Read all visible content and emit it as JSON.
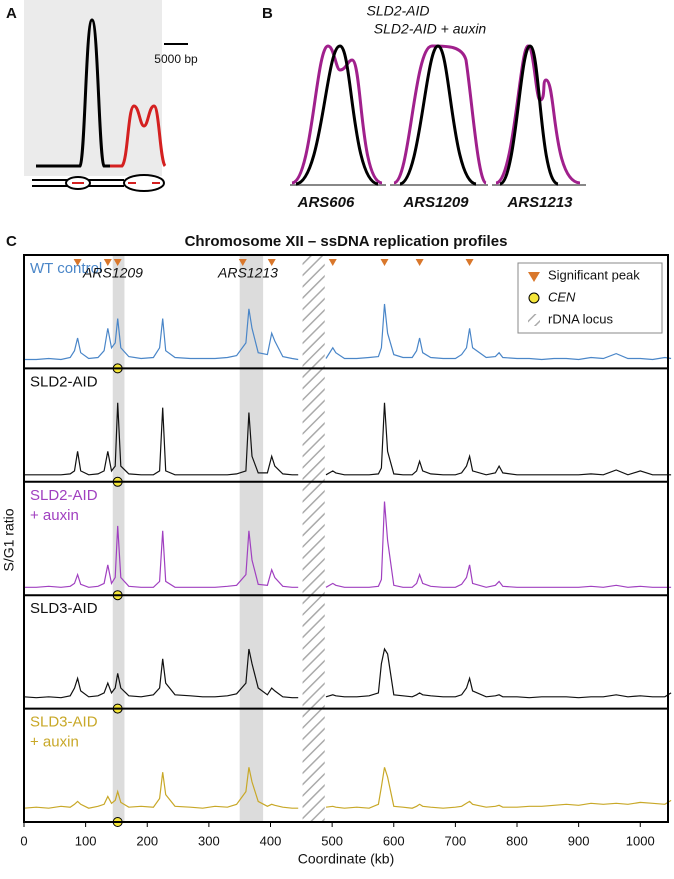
{
  "panel_a": {
    "label": "A",
    "scale_bar": "5000 bp"
  },
  "panel_b": {
    "label": "B",
    "legend": [
      "SLD2-AID",
      "SLD2-AID + auxin"
    ],
    "origins": [
      "ARS606",
      "ARS1209",
      "ARS1213"
    ]
  },
  "chart_data": {
    "type": "line",
    "panel_label": "C",
    "title": "Chromosome XII – ssDNA replication profiles",
    "xlabel": "Coordinate (kb)",
    "ylabel": "S/G1 ratio",
    "xlim": [
      0,
      1045
    ],
    "xticks": [
      0,
      100,
      200,
      300,
      400,
      500,
      600,
      700,
      800,
      900,
      1000
    ],
    "ylim": [
      0,
      10
    ],
    "legend": "upper right",
    "annotations": [
      "ARS1209",
      "ARS1213"
    ],
    "legend_entries": [
      "Significant peak",
      "CEN",
      "rDNA locus"
    ],
    "significant_peaks": [
      87,
      136,
      152,
      355,
      402,
      501,
      585,
      642,
      723
    ],
    "cen": 152,
    "shaded_regions": [
      [
        144,
        163
      ],
      [
        350,
        388
      ]
    ],
    "rdna_region": [
      452,
      488
    ],
    "x": [
      0,
      20,
      40,
      60,
      75,
      82,
      87,
      92,
      105,
      120,
      130,
      136,
      142,
      148,
      152,
      157,
      170,
      190,
      210,
      220,
      225,
      230,
      245,
      270,
      290,
      310,
      330,
      345,
      360,
      365,
      370,
      380,
      395,
      402,
      407,
      420,
      435,
      445,
      465,
      490,
      501,
      506,
      520,
      540,
      560,
      575,
      580,
      585,
      590,
      600,
      615,
      630,
      637,
      642,
      647,
      660,
      680,
      700,
      710,
      718,
      723,
      728,
      750,
      765,
      771,
      777,
      800,
      820,
      840,
      860,
      880,
      900,
      920,
      940,
      961,
      980,
      1000,
      1020,
      1040,
      1050
    ],
    "series": [
      {
        "name": [
          "WT control"
        ],
        "color": "#4a86c8",
        "values": [
          0.3,
          0.3,
          0.4,
          0.3,
          0.5,
          1.2,
          2.5,
          1.0,
          0.4,
          0.5,
          1.2,
          3.5,
          1.5,
          2.0,
          4.5,
          1.5,
          0.6,
          0.4,
          0.5,
          1.5,
          4.5,
          1.2,
          0.5,
          0.4,
          0.4,
          0.4,
          0.5,
          0.7,
          2.0,
          5.5,
          3.5,
          1.0,
          0.8,
          3.0,
          2.2,
          0.6,
          0.4,
          0.3,
          null,
          0.4,
          1.5,
          1.0,
          0.4,
          0.4,
          0.5,
          0.6,
          1.5,
          6.0,
          3.0,
          0.8,
          0.5,
          0.5,
          1.2,
          2.5,
          1.0,
          0.5,
          0.4,
          0.4,
          0.8,
          1.5,
          3.5,
          1.5,
          0.5,
          0.6,
          1.0,
          0.5,
          0.4,
          0.4,
          0.3,
          0.4,
          0.4,
          0.3,
          0.5,
          0.4,
          0.9,
          0.4,
          0.4,
          0.3,
          0.5,
          0.4
        ]
      },
      {
        "name": [
          "SLD2-AID"
        ],
        "color": "#111111",
        "values": [
          0.1,
          0.1,
          0.1,
          0.1,
          0.2,
          0.5,
          2.5,
          0.5,
          0.1,
          0.2,
          0.5,
          2.5,
          0.5,
          1.0,
          7.5,
          1.0,
          0.2,
          0.1,
          0.1,
          0.5,
          7.0,
          0.5,
          0.1,
          0.1,
          0.1,
          0.1,
          0.1,
          0.2,
          0.5,
          6.5,
          2.0,
          0.3,
          0.3,
          2.0,
          1.0,
          0.2,
          0.1,
          0.1,
          null,
          0.1,
          0.5,
          0.3,
          0.1,
          0.1,
          0.1,
          0.2,
          0.8,
          7.5,
          2.5,
          0.2,
          0.1,
          0.1,
          0.5,
          1.5,
          0.5,
          0.2,
          0.1,
          0.1,
          0.3,
          1.0,
          2.0,
          0.5,
          0.1,
          0.3,
          1.0,
          0.3,
          0.1,
          0.1,
          0.1,
          0.1,
          0.1,
          0.1,
          0.2,
          0.1,
          0.6,
          0.1,
          0.5,
          0.1,
          0.1,
          0.1
        ]
      },
      {
        "name": [
          "SLD2-AID",
          "+ auxin"
        ],
        "color": "#a040c0",
        "values": [
          0.2,
          0.2,
          0.3,
          0.2,
          0.3,
          0.6,
          1.5,
          0.5,
          0.2,
          0.3,
          0.6,
          2.5,
          0.6,
          1.2,
          6.5,
          1.2,
          0.3,
          0.2,
          0.2,
          0.8,
          6.0,
          0.8,
          0.2,
          0.2,
          0.2,
          0.2,
          0.3,
          0.4,
          1.5,
          6.0,
          3.0,
          0.5,
          0.4,
          2.0,
          1.2,
          0.3,
          0.2,
          0.2,
          null,
          0.2,
          0.6,
          0.4,
          0.2,
          0.2,
          0.2,
          0.3,
          1.0,
          9.0,
          5.0,
          0.4,
          0.2,
          0.2,
          0.6,
          1.5,
          0.6,
          0.3,
          0.2,
          0.2,
          0.5,
          1.2,
          2.5,
          0.6,
          0.2,
          0.4,
          0.8,
          0.3,
          0.2,
          0.2,
          0.2,
          0.2,
          0.2,
          0.2,
          0.3,
          0.2,
          0.4,
          0.2,
          0.3,
          0.2,
          0.2,
          0.2
        ]
      },
      {
        "name": [
          "SLD3-AID"
        ],
        "color": "#111111",
        "values": [
          0.6,
          0.5,
          0.6,
          0.5,
          0.7,
          1.5,
          2.5,
          1.2,
          0.6,
          0.7,
          1.0,
          2.0,
          1.0,
          1.5,
          3.0,
          1.5,
          0.7,
          0.6,
          0.8,
          1.5,
          4.5,
          2.0,
          0.8,
          0.7,
          0.6,
          0.6,
          0.7,
          0.9,
          2.0,
          5.5,
          4.0,
          1.5,
          0.8,
          1.5,
          1.2,
          0.6,
          0.5,
          0.5,
          null,
          0.6,
          0.8,
          0.7,
          0.6,
          0.6,
          0.7,
          1.0,
          4.0,
          5.5,
          5.0,
          0.8,
          0.7,
          0.6,
          0.8,
          1.0,
          0.8,
          0.7,
          0.6,
          0.6,
          0.8,
          1.5,
          2.5,
          1.2,
          0.6,
          0.7,
          0.8,
          0.6,
          0.6,
          0.5,
          0.6,
          0.6,
          0.6,
          0.5,
          0.6,
          0.6,
          0.8,
          0.6,
          0.7,
          0.6,
          0.6,
          1.0
        ]
      },
      {
        "name": [
          "SLD3-AID",
          "+ auxin"
        ],
        "color": "#c8a828",
        "values": [
          0.8,
          0.9,
          0.8,
          1.0,
          0.9,
          1.2,
          1.5,
          1.2,
          0.8,
          1.0,
          1.2,
          2.0,
          1.3,
          1.6,
          2.5,
          1.4,
          0.9,
          1.0,
          0.9,
          1.8,
          4.5,
          2.2,
          1.0,
          0.9,
          0.8,
          1.0,
          0.9,
          1.2,
          2.5,
          5.0,
          3.5,
          1.5,
          1.0,
          1.2,
          1.1,
          0.9,
          0.8,
          0.8,
          null,
          0.9,
          1.0,
          0.9,
          0.8,
          0.9,
          0.8,
          1.2,
          3.0,
          5.0,
          4.0,
          1.0,
          0.9,
          0.8,
          1.0,
          1.2,
          1.0,
          0.9,
          0.8,
          0.9,
          1.0,
          1.3,
          1.5,
          1.2,
          0.9,
          1.0,
          1.1,
          0.9,
          0.9,
          1.0,
          1.0,
          1.1,
          1.2,
          1.1,
          1.3,
          1.2,
          1.3,
          1.2,
          1.4,
          1.3,
          1.2,
          1.6
        ]
      }
    ]
  }
}
